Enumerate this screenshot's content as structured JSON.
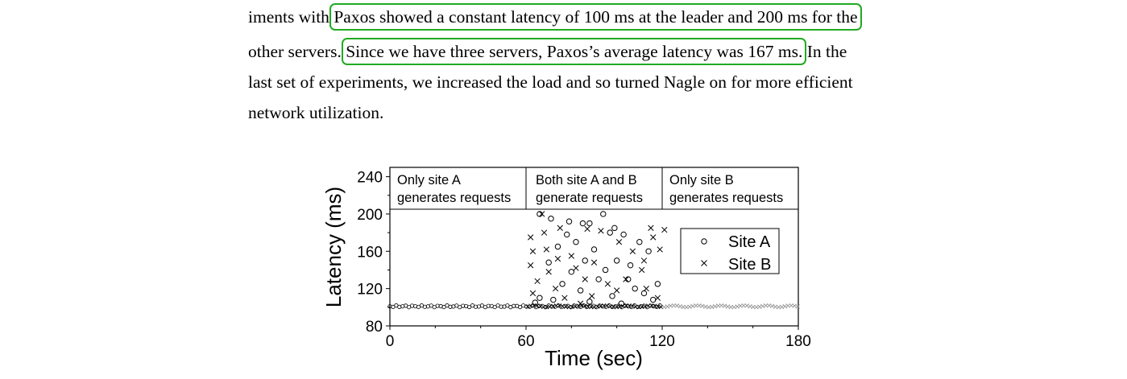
{
  "paragraph": {
    "line1_before": "iments with ",
    "line1_highlight": "Paxos showed a constant latency of 100 ms at the leader and 200 ms for the",
    "line2_before": "other servers. ",
    "line2_highlight": "Since we have three servers, Paxos’s average latency was 167 ms.",
    "line2_after": " In the",
    "line3": "last set of experiments, we increased the load and so turned Nagle on for more efficient",
    "line4": "network utilization."
  },
  "chart_data": {
    "type": "scatter",
    "xlabel": "Time (sec)",
    "ylabel": "Latency (ms)",
    "xlim": [
      0,
      180
    ],
    "ylim": [
      80,
      250
    ],
    "xticks": [
      0,
      60,
      120,
      180
    ],
    "yticks": [
      80,
      120,
      160,
      200,
      240
    ],
    "legend_position": "right, inside plot",
    "phases": [
      {
        "label_line1": "Only site A",
        "label_line2": "generates requests",
        "start": 0,
        "end": 60
      },
      {
        "label_line1": "Both site A and B",
        "label_line2": "generate requests",
        "start": 60,
        "end": 120
      },
      {
        "label_line1": "Only site B",
        "label_line2": "generates requests",
        "start": 120,
        "end": 180
      }
    ],
    "series": [
      {
        "name": "Site A",
        "marker": "circle",
        "points": [
          [
            66,
            200
          ],
          [
            71,
            195
          ],
          [
            79,
            192
          ],
          [
            85,
            190
          ],
          [
            94,
            200
          ],
          [
            88,
            190
          ],
          [
            99,
            185
          ],
          [
            97,
            180
          ],
          [
            78,
            178
          ],
          [
            103,
            178
          ],
          [
            82,
            170
          ],
          [
            74,
            165
          ],
          [
            90,
            162
          ],
          [
            100,
            150
          ],
          [
            86,
            150
          ],
          [
            70,
            148
          ],
          [
            95,
            140
          ],
          [
            80,
            138
          ],
          [
            92,
            130
          ],
          [
            105,
            130
          ],
          [
            76,
            125
          ],
          [
            108,
            120
          ],
          [
            84,
            118
          ],
          [
            98,
            112
          ],
          [
            112,
            115
          ],
          [
            66,
            110
          ],
          [
            72,
            108
          ],
          [
            88,
            106
          ],
          [
            102,
            104
          ],
          [
            116,
            108
          ],
          [
            64,
            105
          ],
          [
            110,
            170
          ],
          [
            114,
            160
          ],
          [
            106,
            145
          ],
          [
            118,
            125
          ]
        ]
      },
      {
        "name": "Site B",
        "marker": "x",
        "points": [
          [
            67,
            200
          ],
          [
            62,
            175
          ],
          [
            68,
            180
          ],
          [
            75,
            185
          ],
          [
            87,
            184
          ],
          [
            93,
            182
          ],
          [
            115,
            185
          ],
          [
            116,
            175
          ],
          [
            121,
            183
          ],
          [
            119,
            162
          ],
          [
            63,
            160
          ],
          [
            69,
            162
          ],
          [
            74,
            152
          ],
          [
            80,
            155
          ],
          [
            101,
            170
          ],
          [
            107,
            160
          ],
          [
            112,
            150
          ],
          [
            62,
            145
          ],
          [
            70,
            138
          ],
          [
            82,
            142
          ],
          [
            90,
            148
          ],
          [
            111,
            140
          ],
          [
            65,
            128
          ],
          [
            73,
            120
          ],
          [
            86,
            130
          ],
          [
            96,
            125
          ],
          [
            104,
            130
          ],
          [
            113,
            120
          ],
          [
            63,
            115
          ],
          [
            77,
            110
          ],
          [
            89,
            112
          ],
          [
            118,
            110
          ],
          [
            100,
            118
          ],
          [
            84,
            104
          ]
        ]
      }
    ],
    "baseline": {
      "a_value": 101,
      "a_range": [
        0,
        120
      ],
      "b_value": 101,
      "b_range": [
        60,
        180
      ]
    }
  },
  "colors": {
    "highlight": "#22aa22",
    "text": "#000000",
    "series": "#000000",
    "baseline_b": "#8c8c8c"
  }
}
